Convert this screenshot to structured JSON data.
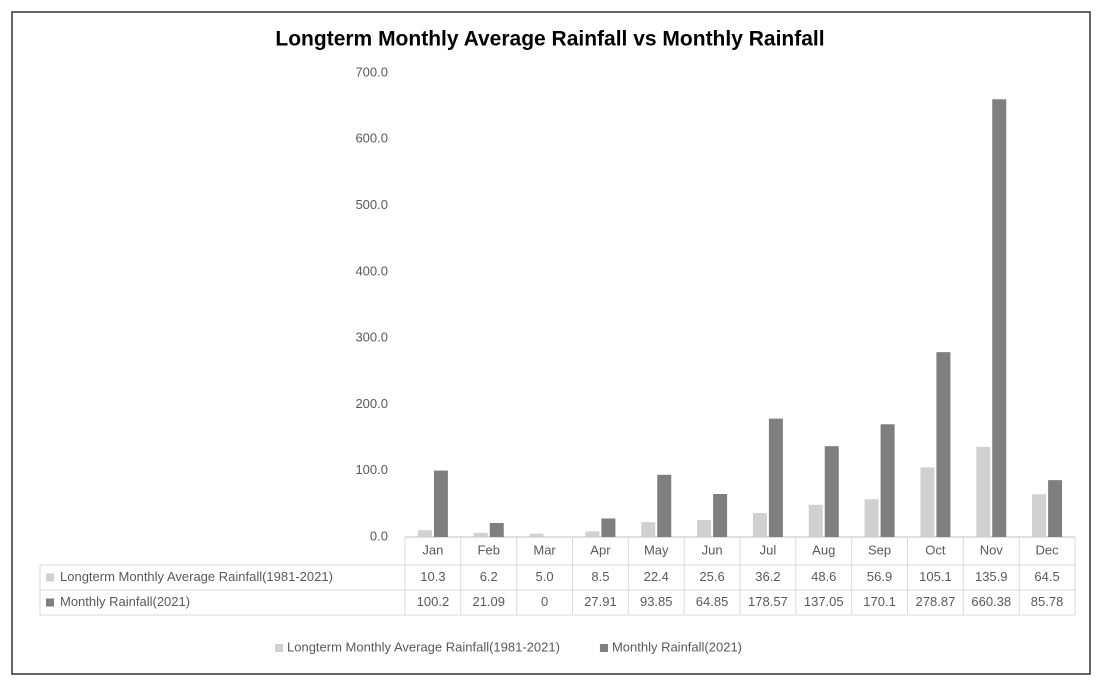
{
  "chart_data": {
    "type": "bar",
    "title": "Longterm Monthly Average Rainfall vs Monthly Rainfall",
    "categories": [
      "Jan",
      "Feb",
      "Mar",
      "Apr",
      "May",
      "Jun",
      "Jul",
      "Aug",
      "Sep",
      "Oct",
      "Nov",
      "Dec"
    ],
    "series": [
      {
        "name": "Longterm Monthly Average Rainfall(1981-2021)",
        "color": "#d0d0d0",
        "values": [
          10.3,
          6.2,
          5.0,
          8.5,
          22.4,
          25.6,
          36.2,
          48.6,
          56.9,
          105.1,
          135.9,
          64.5
        ],
        "value_labels": [
          "10.3",
          "6.2",
          "5.0",
          "8.5",
          "22.4",
          "25.6",
          "36.2",
          "48.6",
          "56.9",
          "105.1",
          "135.9",
          "64.5"
        ]
      },
      {
        "name": "Monthly Rainfall(2021)",
        "color": "#7f7f7f",
        "values": [
          100.2,
          21.09,
          0,
          27.91,
          93.85,
          64.85,
          178.57,
          137.05,
          170.1,
          278.87,
          660.38,
          85.78
        ],
        "value_labels": [
          "100.2",
          "21.09",
          "0",
          "27.91",
          "93.85",
          "64.85",
          "178.57",
          "137.05",
          "170.1",
          "278.87",
          "660.38",
          "85.78"
        ]
      }
    ],
    "ylim": [
      0,
      700
    ],
    "yticks": [
      {
        "value": 0,
        "label": "0.0"
      },
      {
        "value": 100,
        "label": "100.0"
      },
      {
        "value": 200,
        "label": "200.0"
      },
      {
        "value": 300,
        "label": "300.0"
      },
      {
        "value": 400,
        "label": "400.0"
      },
      {
        "value": 500,
        "label": "500.0"
      },
      {
        "value": 600,
        "label": "600.0"
      },
      {
        "value": 700,
        "label": "700.0"
      }
    ],
    "grid": false,
    "legend": "bottom"
  }
}
